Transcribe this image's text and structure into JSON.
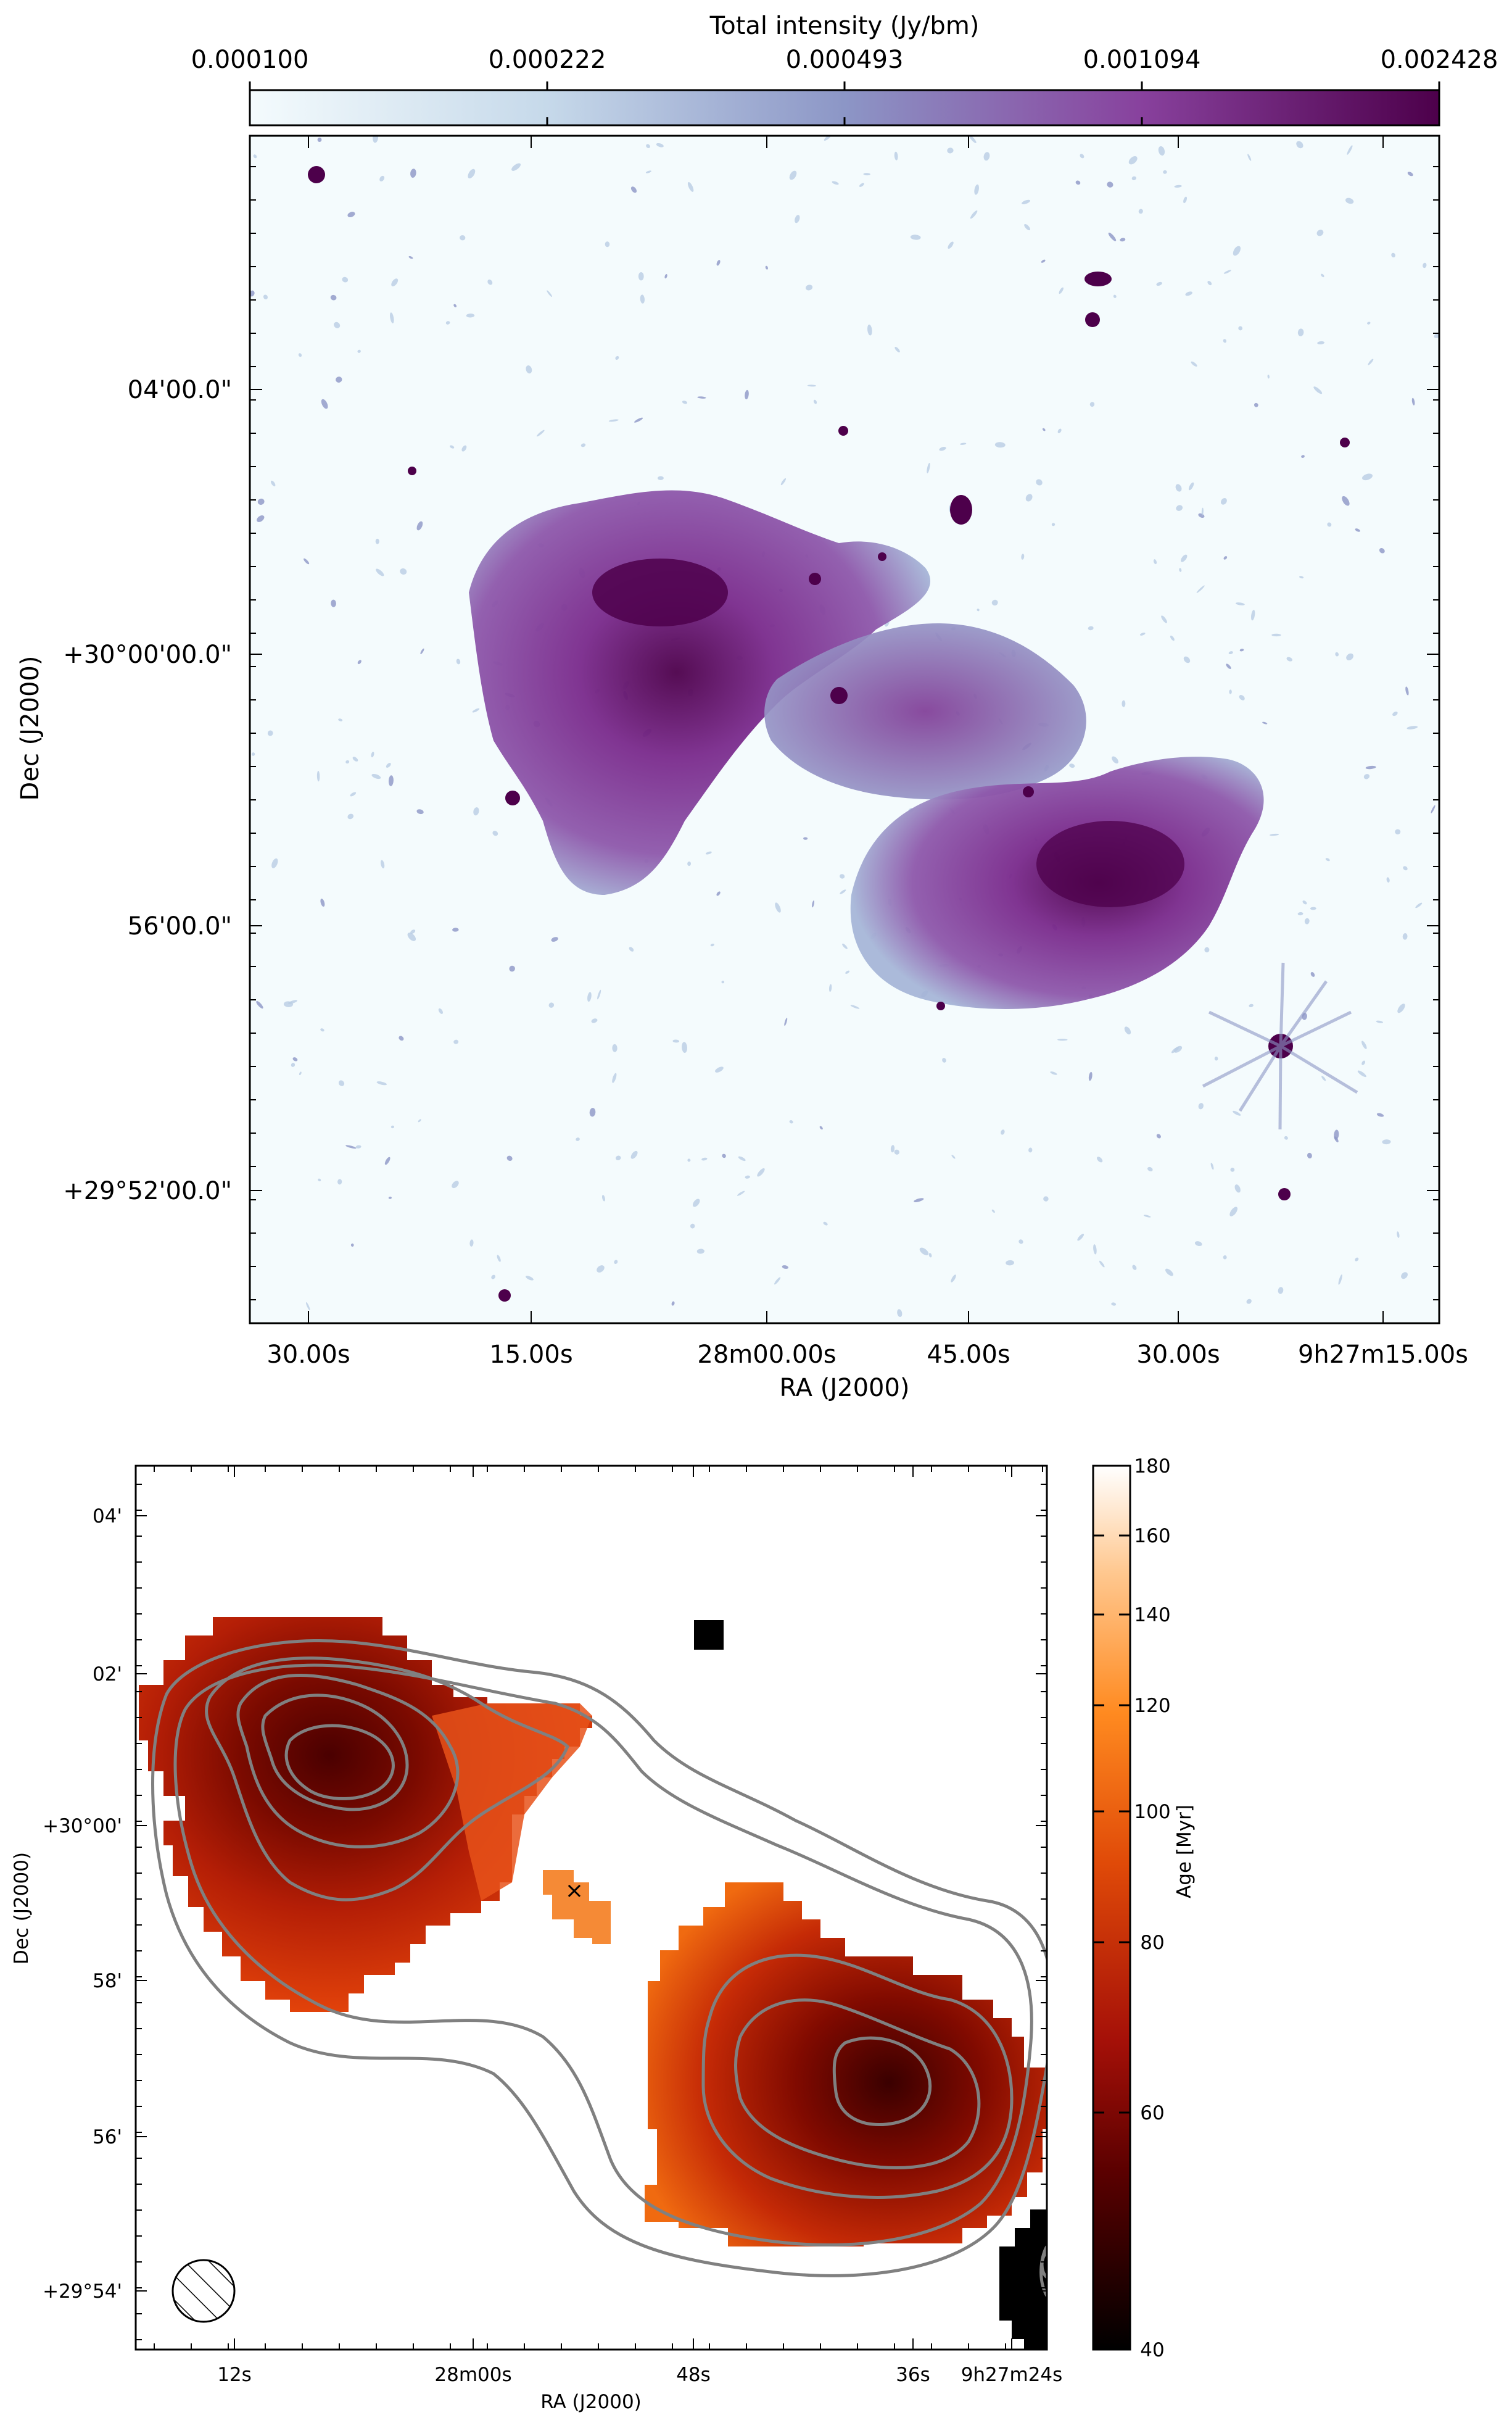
{
  "top_panel": {
    "colorbar_label": "Total intensity (Jy/bm)",
    "colorbar_ticks": [
      "0.000100",
      "0.000222",
      "0.000493",
      "0.001094",
      "0.002428"
    ],
    "colors": [
      "#f4fbfd",
      "#a9c4dd",
      "#8c96c6",
      "#88419d",
      "#4d004b"
    ],
    "ylabel": "Dec (J2000)",
    "xlabel": "RA (J2000)",
    "yticks": [
      "04'00.0\"",
      "+30°00'00.0\"",
      "56'00.0\"",
      "+29°52'00.0\""
    ],
    "xticks": [
      "30.00s",
      "15.00s",
      "28m00.00s",
      "45.00s",
      "30.00s",
      "9h27m15.00s"
    ]
  },
  "bottom_panel": {
    "colorbar_label": "Age [Myr]",
    "colorbar_ticks": [
      "40",
      "60",
      "80",
      "100",
      "120",
      "140",
      "160",
      "180"
    ],
    "colors": [
      "#000000",
      "#8b0000",
      "#cc2a00",
      "#ff7a10",
      "#ffb060",
      "#ffffff"
    ],
    "contour_color": "#808080",
    "ylabel": "Dec (J2000)",
    "xlabel": "RA (J2000)",
    "yticks": [
      "04'",
      "02'",
      "+30°00'",
      "58'",
      "56'",
      "+29°54'"
    ],
    "xticks": [
      "12s",
      "28m00s",
      "48s",
      "36s",
      "9h27m24s"
    ],
    "marker": "×"
  }
}
